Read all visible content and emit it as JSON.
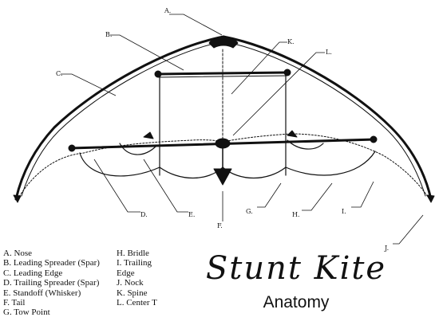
{
  "diagram": {
    "title": "Stunt Kite",
    "subtitle": "Anatomy",
    "callouts": {
      "a": "A.",
      "b": "B.",
      "c": "C.",
      "d": "D.",
      "e": "E.",
      "f": "F.",
      "g": "G.",
      "h": "H.",
      "i": "I.",
      "j": "J.",
      "k": "K.",
      "l": "L."
    },
    "legend_left": [
      "A. Nose",
      "B. Leading Spreader (Spar)",
      "C. Leading Edge",
      "D. Trailing Spreader (Spar)",
      "E. Standoff (Whisker)",
      "F. Tail",
      "G. Tow Point"
    ],
    "legend_right": [
      "H. Bridle",
      "I. Trailing",
      "Edge",
      "J. Nock",
      "K. Spine",
      "L. Center T"
    ]
  }
}
